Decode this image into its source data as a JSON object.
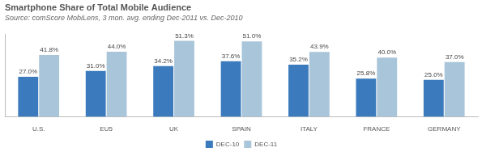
{
  "chart_data": {
    "type": "bar",
    "title": "Smartphone Share of Total Mobile Audience",
    "subtitle": "Source: comScore MobiLens, 3 mon. avg. ending Dec-2011 vs. Dec-2010",
    "categories": [
      "U.S.",
      "EU5",
      "UK",
      "SPAIN",
      "ITALY",
      "FRANCE",
      "GERMANY"
    ],
    "series": [
      {
        "name": "DEC-10",
        "color": "#3b7bbd",
        "values": [
          27.0,
          31.0,
          34.2,
          37.6,
          35.2,
          25.8,
          25.0
        ],
        "value_labels": [
          "27.0%",
          "31.0%",
          "34.2%",
          "37.6%",
          "35.2%",
          "25.8%",
          "25.0%"
        ]
      },
      {
        "name": "DEC-11",
        "color": "#a9c5da",
        "values": [
          41.8,
          44.0,
          51.3,
          51.0,
          43.9,
          40.0,
          37.0
        ],
        "value_labels": [
          "41.8%",
          "44.0%",
          "51.3%",
          "51.0%",
          "43.9%",
          "40.0%",
          "37.0%"
        ]
      }
    ],
    "ylim": [
      0,
      56
    ],
    "grid": false,
    "legend": "bottom",
    "data_labels": true,
    "tick_labels": "x"
  }
}
